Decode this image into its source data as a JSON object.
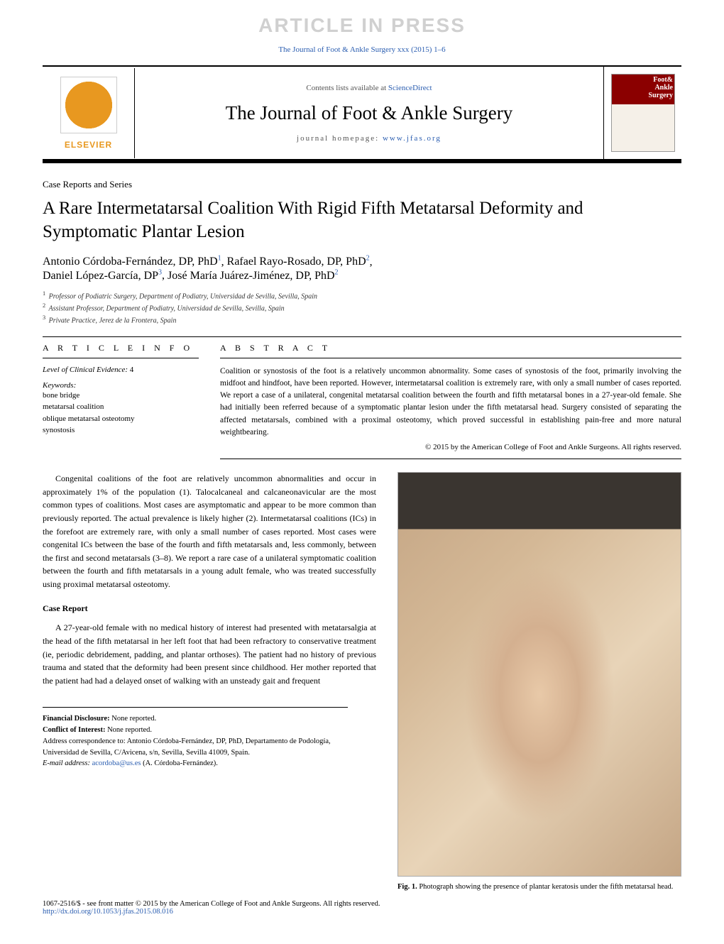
{
  "watermark": "ARTICLE IN PRESS",
  "doi_top": "The Journal of Foot & Ankle Surgery xxx (2015) 1–6",
  "header": {
    "contents_prefix": "Contents lists available at ",
    "contents_link": "ScienceDirect",
    "journal_title": "The Journal of Foot & Ankle Surgery",
    "homepage_prefix": "journal homepage: ",
    "homepage_link": "www.jfas.org",
    "publisher_name": "ELSEVIER",
    "cover_brand_line1": "Foot&",
    "cover_brand_line2": "Ankle",
    "cover_brand_line3": "Surgery"
  },
  "section_label": "Case Reports and Series",
  "article_title": "A Rare Intermetatarsal Coalition With Rigid Fifth Metatarsal Deformity and Symptomatic Plantar Lesion",
  "authors_html": "Antonio Córdoba-Fernández, DP, PhD ¹, Rafael Rayo-Rosado, DP, PhD ², Daniel López-García, DP ³, José María Juárez-Jiménez, DP, PhD ²",
  "authors": [
    {
      "name": "Antonio Córdoba-Fernández, DP, PhD",
      "aff": "1"
    },
    {
      "name": "Rafael Rayo-Rosado, DP, PhD",
      "aff": "2"
    },
    {
      "name": "Daniel López-García, DP",
      "aff": "3"
    },
    {
      "name": "José María Juárez-Jiménez, DP, PhD",
      "aff": "2"
    }
  ],
  "affiliations": [
    {
      "num": "1",
      "text": "Professor of Podiatric Surgery, Department of Podiatry, Universidad de Sevilla, Sevilla, Spain"
    },
    {
      "num": "2",
      "text": "Assistant Professor, Department of Podiatry, Universidad de Sevilla, Sevilla, Spain"
    },
    {
      "num": "3",
      "text": "Private Practice, Jerez de la Frontera, Spain"
    }
  ],
  "article_info": {
    "heading": "A R T I C L E   I N F O",
    "evidence_label": "Level of Clinical Evidence:",
    "evidence_value": "4",
    "keywords_label": "Keywords:",
    "keywords": [
      "bone bridge",
      "metatarsal coalition",
      "oblique metatarsal osteotomy",
      "synostosis"
    ]
  },
  "abstract": {
    "heading": "A B S T R A C T",
    "text": "Coalition or synostosis of the foot is a relatively uncommon abnormality. Some cases of synostosis of the foot, primarily involving the midfoot and hindfoot, have been reported. However, intermetatarsal coalition is extremely rare, with only a small number of cases reported. We report a case of a unilateral, congenital metatarsal coalition between the fourth and fifth metatarsal bones in a 27-year-old female. She had initially been referred because of a symptomatic plantar lesion under the fifth metatarsal head. Surgery consisted of separating the affected metatarsals, combined with a proximal osteotomy, which proved successful in establishing pain-free and more natural weightbearing.",
    "copyright": "© 2015 by the American College of Foot and Ankle Surgeons. All rights reserved."
  },
  "body": {
    "intro": "Congenital coalitions of the foot are relatively uncommon abnormalities and occur in approximately 1% of the population (1). Talocalcaneal and calcaneonavicular are the most common types of coalitions. Most cases are asymptomatic and appear to be more common than previously reported. The actual prevalence is likely higher (2). Intermetatarsal coalitions (ICs) in the forefoot are extremely rare, with only a small number of cases reported. Most cases were congenital ICs between the base of the fourth and fifth metatarsals and, less commonly, between the first and second metatarsals (3–8). We report a rare case of a unilateral symptomatic coalition between the fourth and fifth metatarsals in a young adult female, who was treated successfully using proximal metatarsal osteotomy.",
    "case_report_heading": "Case Report",
    "case_report": "A 27-year-old female with no medical history of interest had presented with metatarsalgia at the head of the fifth metatarsal in her left foot that had been refractory to conservative treatment (ie, periodic debridement, padding, and plantar orthoses). The patient had no history of previous trauma and stated that the deformity had been present since childhood. Her mother reported that the patient had had a delayed onset of walking with an unsteady gait and frequent"
  },
  "figure1": {
    "caption_label": "Fig. 1.",
    "caption_text": "Photograph showing the presence of plantar keratosis under the fifth metatarsal head."
  },
  "footer": {
    "financial_label": "Financial Disclosure:",
    "financial_value": "None reported.",
    "conflict_label": "Conflict of Interest:",
    "conflict_value": "None reported.",
    "correspondence": "Address correspondence to: Antonio Córdoba-Fernández, DP, PhD, Departamento de Podología, Universidad de Sevilla, C/Avicena, s/n, Sevilla, Sevilla 41009, Spain.",
    "email_label": "E-mail address:",
    "email": "acordoba@us.es",
    "email_suffix": "(A. Córdoba-Fernández).",
    "global": "1067-2516/$ - see front matter © 2015 by the American College of Foot and Ankle Surgeons. All rights reserved.",
    "doi": "http://dx.doi.org/10.1053/j.jfas.2015.08.016"
  }
}
